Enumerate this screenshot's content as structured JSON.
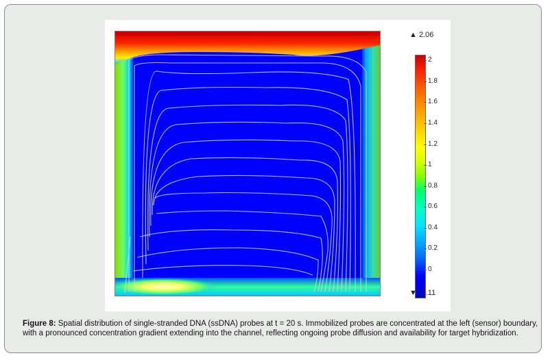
{
  "figure": {
    "colorbar": {
      "max_label": "▲ 2.06",
      "min_label": "▼ -0.11",
      "ticks": [
        "2",
        "1.8",
        "1.6",
        "1.4",
        "1.2",
        "1",
        "0.8",
        "0.6",
        "0.4",
        "0.2",
        "0"
      ],
      "colormap": "rainbow (blue → cyan → green → yellow → red)"
    },
    "plot": {
      "field": "ssDNA probe concentration",
      "colors": {
        "background_low": "#0000ff",
        "boundary_high": "#ff2a00",
        "streamline": "#c8d2e6"
      }
    }
  },
  "caption": {
    "label": "Figure 8:",
    "text": " Spatial distribution of single-stranded DNA (ssDNA) probes at t = 20 s. Immobilized probes are concentrated at the left (sensor) boundary, with a pronounced concentration gradient extending into the channel, reflecting ongoing probe diffusion and availability for target hybridization."
  }
}
